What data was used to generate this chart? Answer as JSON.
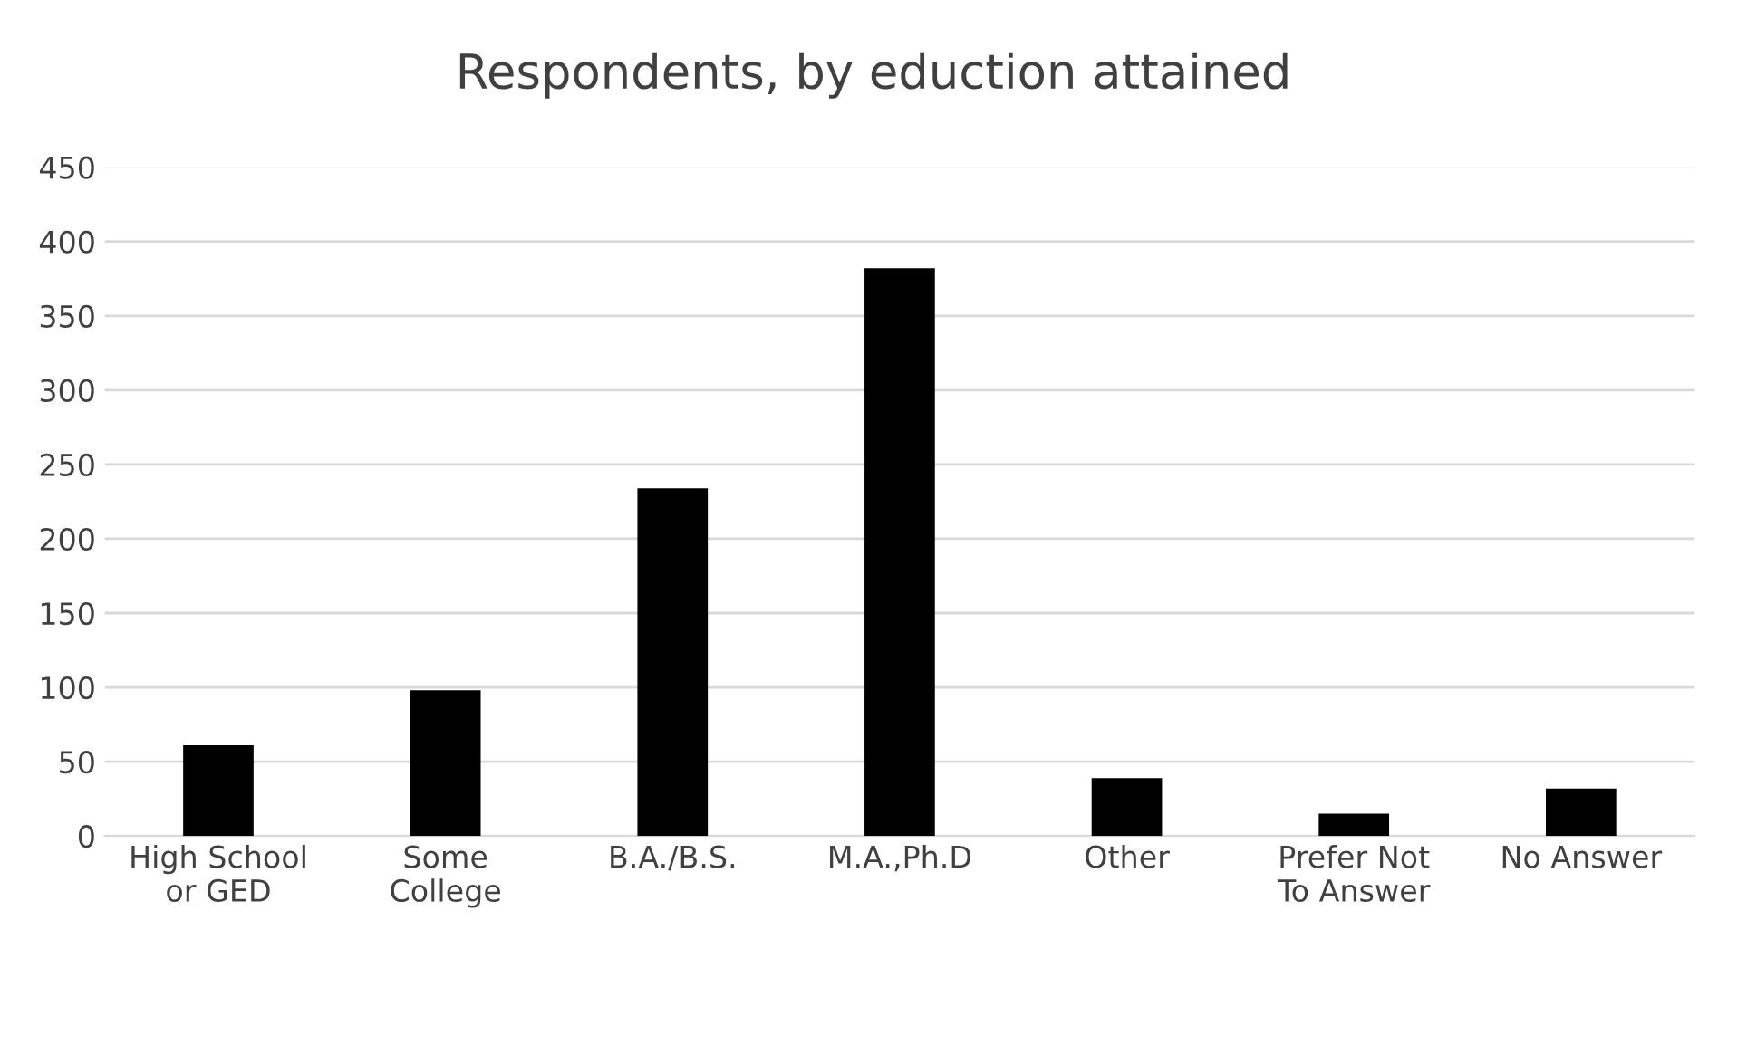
{
  "chart_data": {
    "type": "bar",
    "title": "Respondents, by eduction attained",
    "categories": [
      "High School\nor GED",
      "Some\nCollege",
      "B.A./B.S.",
      "M.A.,Ph.D",
      "Other",
      "Prefer Not\nTo Answer",
      "No Answer"
    ],
    "values": [
      61,
      98,
      234,
      382,
      39,
      15,
      32
    ],
    "color": "#000000",
    "ylim": [
      0,
      450
    ],
    "yticks": [
      0,
      50,
      100,
      150,
      200,
      250,
      300,
      350,
      400,
      450
    ],
    "grid": "y"
  }
}
